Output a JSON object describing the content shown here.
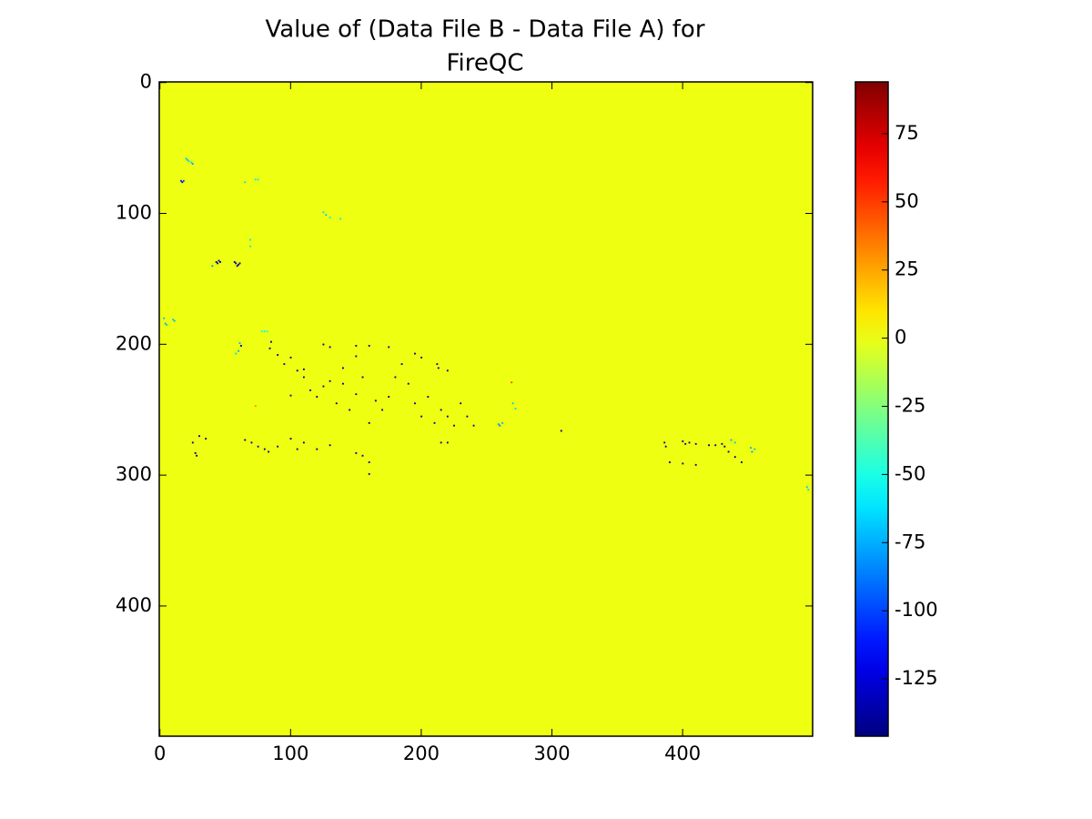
{
  "chart_data": {
    "type": "heatmap",
    "title": [
      "Value of (Data File B - Data File A) for",
      "FireQC"
    ],
    "colormap": "jet",
    "xlim": [
      -0.5,
      499.5
    ],
    "ylim": [
      499.5,
      -0.5
    ],
    "xticks": [
      0,
      100,
      200,
      300,
      400
    ],
    "yticks": [
      0,
      100,
      200,
      300,
      400
    ],
    "clim": [
      -146,
      94
    ],
    "cticks": [
      75,
      50,
      25,
      0,
      -25,
      -50,
      -75,
      -100,
      -125
    ],
    "background_value": 0,
    "cells": {
      "x": [
        20,
        21,
        22,
        24,
        25,
        16,
        17,
        18,
        73,
        75,
        65,
        125,
        127,
        130,
        138,
        69,
        69,
        43,
        44,
        45,
        46,
        40,
        57,
        58,
        59,
        60,
        61,
        3,
        4,
        5,
        10,
        11,
        61,
        62,
        60,
        58,
        78,
        80,
        82,
        85,
        84,
        90,
        95,
        100,
        105,
        110,
        115,
        120,
        125,
        130,
        135,
        140,
        145,
        150,
        155,
        160,
        165,
        170,
        175,
        180,
        185,
        190,
        195,
        200,
        205,
        210,
        215,
        220,
        225,
        230,
        235,
        240,
        125,
        130,
        150,
        160,
        175,
        195,
        200,
        212,
        213,
        220,
        150,
        110,
        100,
        140,
        259,
        260,
        262,
        270,
        272,
        269,
        73,
        25,
        27,
        28,
        30,
        35,
        65,
        70,
        75,
        80,
        83,
        90,
        100,
        105,
        110,
        120,
        130,
        150,
        155,
        160,
        160,
        215,
        220,
        307,
        386,
        387,
        400,
        402,
        405,
        410,
        420,
        425,
        430,
        432,
        435,
        440,
        445,
        390,
        400,
        410,
        437,
        440,
        452,
        453,
        455,
        495,
        496
      ],
      "y": [
        58,
        59,
        60,
        61,
        62,
        75,
        76,
        75,
        74,
        74,
        76,
        99,
        101,
        103,
        104,
        120,
        125,
        137,
        138,
        136,
        137,
        140,
        137,
        138,
        140,
        139,
        138,
        180,
        184,
        185,
        181,
        182,
        199,
        201,
        205,
        207,
        190,
        190,
        190,
        198,
        203,
        208,
        215,
        210,
        220,
        225,
        235,
        240,
        232,
        228,
        245,
        218,
        250,
        238,
        225,
        260,
        243,
        250,
        240,
        225,
        215,
        230,
        245,
        255,
        240,
        260,
        250,
        255,
        262,
        245,
        255,
        262,
        200,
        202,
        201,
        201,
        202,
        207,
        210,
        215,
        218,
        220,
        209,
        219,
        239,
        230,
        261,
        262,
        260,
        245,
        249,
        229,
        247,
        275,
        283,
        285,
        270,
        272,
        273,
        275,
        278,
        280,
        282,
        278,
        272,
        280,
        275,
        280,
        277,
        283,
        285,
        290,
        299,
        275,
        275,
        266,
        275,
        278,
        274,
        276,
        275,
        276,
        277,
        277,
        276,
        278,
        282,
        286,
        290,
        290,
        291,
        292,
        273,
        275,
        279,
        282,
        280,
        309,
        311
      ],
      "values": [
        -70,
        -70,
        -65,
        -70,
        -75,
        -110,
        -120,
        -100,
        -60,
        -60,
        -65,
        -65,
        -70,
        -60,
        -60,
        -60,
        -60,
        -140,
        -140,
        -140,
        -140,
        -80,
        -140,
        -140,
        -140,
        -140,
        -140,
        -70,
        -75,
        -70,
        -70,
        -75,
        -75,
        -140,
        -75,
        -65,
        -55,
        -55,
        -55,
        -140,
        -140,
        -140,
        -140,
        -140,
        -140,
        -140,
        -140,
        -140,
        -140,
        -140,
        -140,
        -140,
        -140,
        -140,
        -140,
        -140,
        -140,
        -140,
        -140,
        -140,
        -140,
        -140,
        -140,
        -140,
        -140,
        -140,
        -140,
        -140,
        -140,
        -140,
        -140,
        -140,
        -140,
        -140,
        -140,
        -140,
        -140,
        -140,
        -140,
        -140,
        -140,
        -140,
        -140,
        -140,
        -140,
        -140,
        -80,
        -85,
        -75,
        -70,
        -65,
        45,
        30,
        -140,
        -140,
        -140,
        -140,
        -140,
        -140,
        -140,
        -140,
        -140,
        -140,
        -140,
        -140,
        -140,
        -140,
        -140,
        -140,
        -140,
        -140,
        -140,
        -140,
        -140,
        -140,
        -140,
        -140,
        -140,
        -140,
        -140,
        -140,
        -140,
        -140,
        -140,
        -140,
        -140,
        -140,
        -140,
        -140,
        -140,
        -140,
        -140,
        -75,
        -70,
        -75,
        -80,
        -70,
        -70,
        -65
      ]
    }
  }
}
